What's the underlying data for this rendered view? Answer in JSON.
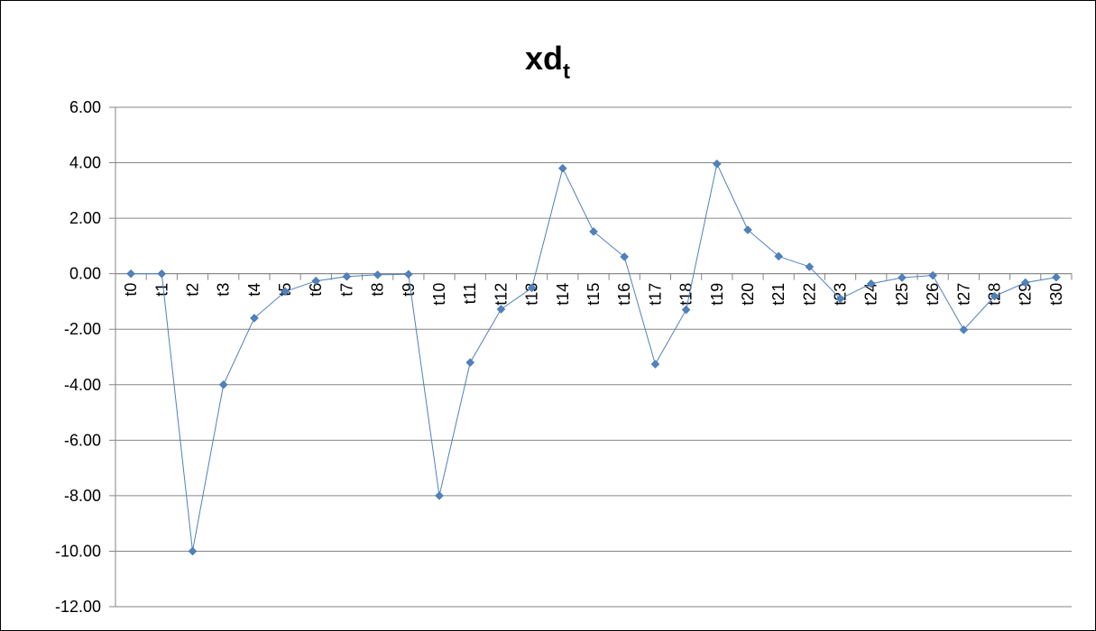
{
  "chart_data": {
    "type": "line",
    "title": "xd",
    "title_subscript": "t",
    "categories": [
      "t0",
      "t1",
      "t2",
      "t3",
      "t4",
      "t5",
      "t6",
      "t7",
      "t8",
      "t9",
      "t10",
      "t11",
      "t12",
      "t13",
      "t14",
      "t15",
      "t16",
      "t17",
      "t18",
      "t19",
      "t20",
      "t21",
      "t22",
      "t23",
      "t24",
      "t25",
      "t26",
      "t27",
      "t28",
      "t29",
      "t30"
    ],
    "series": [
      {
        "values": [
          0.0,
          0.0,
          -10.0,
          -4.0,
          -1.6,
          -0.64,
          -0.26,
          -0.1,
          -0.04,
          -0.02,
          -8.0,
          -3.2,
          -1.28,
          -0.51,
          3.8,
          1.52,
          0.61,
          -3.26,
          -1.3,
          3.96,
          1.58,
          0.63,
          0.25,
          -0.9,
          -0.36,
          -0.14,
          -0.06,
          -2.02,
          -0.81,
          -0.32,
          -0.13
        ],
        "color": "#4F81BD"
      }
    ],
    "ylim": [
      -12,
      6
    ],
    "yticks": [
      6,
      4,
      2,
      0,
      -2,
      -4,
      -6,
      -8,
      -10,
      -12
    ],
    "ytick_labels": [
      "6.00",
      "4.00",
      "2.00",
      "0.00",
      "-2.00",
      "-4.00",
      "-6.00",
      "-8.00",
      "-10.00",
      "-12.00"
    ],
    "grid": true,
    "legend": "none"
  }
}
